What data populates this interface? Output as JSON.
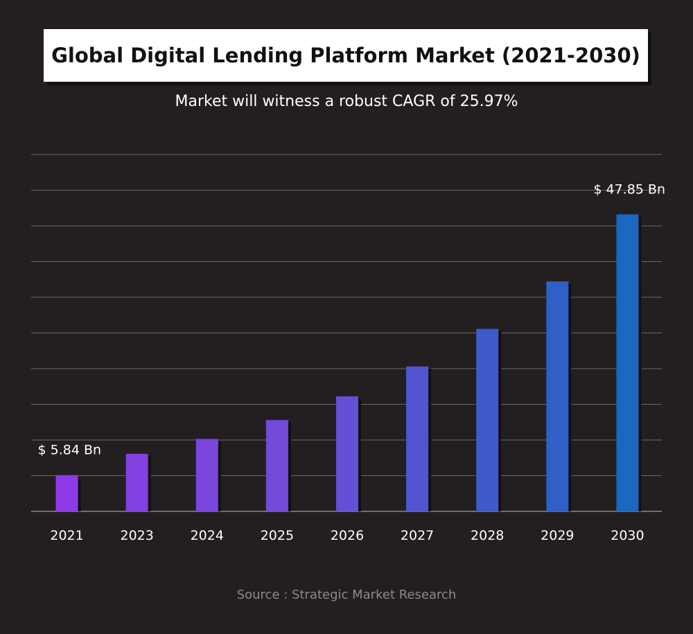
{
  "title": "Global Digital Lending Platform Market (2021-2030)",
  "subtitle": "Market will witness a robust CAGR of 25.97%",
  "source": "Source : Strategic Market Research",
  "chart_data": {
    "type": "bar",
    "categories": [
      "2021",
      "2023",
      "2024",
      "2025",
      "2026",
      "2027",
      "2028",
      "2029",
      "2030"
    ],
    "values": [
      5.84,
      9.27,
      11.68,
      14.71,
      18.53,
      23.35,
      29.41,
      37.05,
      47.85
    ],
    "data_labels": [
      "$ 5.84 Bn",
      "",
      "",
      "",
      "",
      "",
      "",
      "",
      "$ 47.85 Bn"
    ],
    "ylim": [
      0,
      57.5
    ],
    "grid": true,
    "colors": [
      "#8e3ae6",
      "#8440e2",
      "#7b46de",
      "#724bda",
      "#6450d4",
      "#5354cf",
      "#3f5acb",
      "#2e60c6",
      "#1a68bf"
    ]
  }
}
